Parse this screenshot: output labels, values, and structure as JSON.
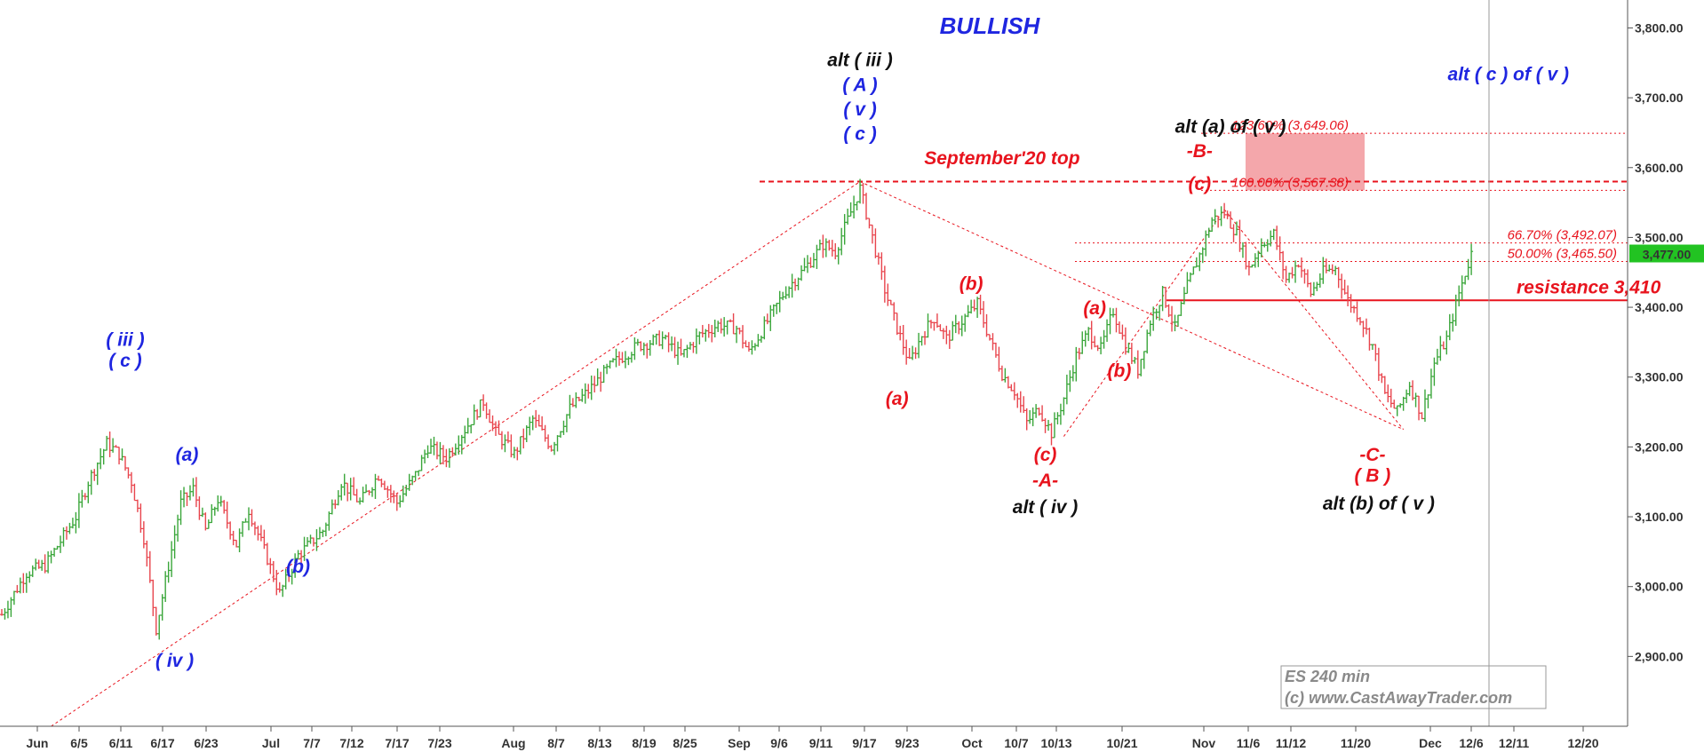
{
  "chart_data": {
    "type": "candlestick",
    "title": "BULLISH",
    "watermark": [
      "ES 240 min",
      "(c) www.CastAwayTrader.com"
    ],
    "ylim": [
      2800,
      3840
    ],
    "y_ticks": [
      "2,900.00",
      "3,000.00",
      "3,100.00",
      "3,200.00",
      "3,300.00",
      "3,400.00",
      "3,500.00",
      "3,600.00",
      "3,700.00",
      "3,800.00"
    ],
    "y_tick_values": [
      2900,
      3000,
      3100,
      3200,
      3300,
      3400,
      3500,
      3600,
      3700,
      3800
    ],
    "x_ticks": [
      "Jun",
      "6/5",
      "6/11",
      "6/17",
      "6/23",
      "Jul",
      "7/7",
      "7/12",
      "7/17",
      "7/23",
      "Aug",
      "8/7",
      "8/13",
      "8/19",
      "8/25",
      "Sep",
      "9/6",
      "9/11",
      "9/17",
      "9/23",
      "Oct",
      "10/7",
      "10/13",
      "10/21",
      "Nov",
      "11/6",
      "11/12",
      "11/20",
      "Dec",
      "12/6",
      "12/11",
      "12/20"
    ],
    "last_price": "3,477.00",
    "last_price_value": 3477,
    "price_path": [
      {
        "t": 0,
        "p": 2960
      },
      {
        "t": 4,
        "p": 3020
      },
      {
        "t": 7,
        "p": 3030
      },
      {
        "t": 12,
        "p": 3100
      },
      {
        "t": 14,
        "p": 3150
      },
      {
        "t": 17,
        "p": 3205
      },
      {
        "t": 19,
        "p": 3190
      },
      {
        "t": 21,
        "p": 3150
      },
      {
        "t": 23,
        "p": 3070
      },
      {
        "t": 25,
        "p": 2940
      },
      {
        "t": 27,
        "p": 3030
      },
      {
        "t": 29,
        "p": 3120
      },
      {
        "t": 31,
        "p": 3140
      },
      {
        "t": 33,
        "p": 3080
      },
      {
        "t": 35,
        "p": 3125
      },
      {
        "t": 38,
        "p": 3060
      },
      {
        "t": 40,
        "p": 3110
      },
      {
        "t": 43,
        "p": 3040
      },
      {
        "t": 45,
        "p": 2990
      },
      {
        "t": 48,
        "p": 3045
      },
      {
        "t": 52,
        "p": 3080
      },
      {
        "t": 55,
        "p": 3150
      },
      {
        "t": 58,
        "p": 3120
      },
      {
        "t": 61,
        "p": 3160
      },
      {
        "t": 64,
        "p": 3120
      },
      {
        "t": 67,
        "p": 3160
      },
      {
        "t": 69,
        "p": 3200
      },
      {
        "t": 72,
        "p": 3185
      },
      {
        "t": 75,
        "p": 3225
      },
      {
        "t": 78,
        "p": 3265
      },
      {
        "t": 80,
        "p": 3220
      },
      {
        "t": 83,
        "p": 3190
      },
      {
        "t": 86,
        "p": 3240
      },
      {
        "t": 89,
        "p": 3200
      },
      {
        "t": 92,
        "p": 3255
      },
      {
        "t": 95,
        "p": 3280
      },
      {
        "t": 99,
        "p": 3320
      },
      {
        "t": 103,
        "p": 3345
      },
      {
        "t": 107,
        "p": 3355
      },
      {
        "t": 110,
        "p": 3330
      },
      {
        "t": 113,
        "p": 3360
      },
      {
        "t": 116,
        "p": 3375
      },
      {
        "t": 119,
        "p": 3370
      },
      {
        "t": 121,
        "p": 3335
      },
      {
        "t": 124,
        "p": 3380
      },
      {
        "t": 127,
        "p": 3425
      },
      {
        "t": 130,
        "p": 3455
      },
      {
        "t": 133,
        "p": 3490
      },
      {
        "t": 135,
        "p": 3480
      },
      {
        "t": 137,
        "p": 3525
      },
      {
        "t": 139,
        "p": 3570
      },
      {
        "t": 141,
        "p": 3500
      },
      {
        "t": 143,
        "p": 3425
      },
      {
        "t": 145,
        "p": 3370
      },
      {
        "t": 147,
        "p": 3320
      },
      {
        "t": 149,
        "p": 3360
      },
      {
        "t": 151,
        "p": 3385
      },
      {
        "t": 153,
        "p": 3355
      },
      {
        "t": 156,
        "p": 3385
      },
      {
        "t": 158,
        "p": 3405
      },
      {
        "t": 160,
        "p": 3355
      },
      {
        "t": 162,
        "p": 3305
      },
      {
        "t": 164,
        "p": 3280
      },
      {
        "t": 166,
        "p": 3235
      },
      {
        "t": 168,
        "p": 3255
      },
      {
        "t": 170,
        "p": 3220
      },
      {
        "t": 172,
        "p": 3270
      },
      {
        "t": 174,
        "p": 3330
      },
      {
        "t": 176,
        "p": 3365
      },
      {
        "t": 178,
        "p": 3340
      },
      {
        "t": 180,
        "p": 3395
      },
      {
        "t": 182,
        "p": 3345
      },
      {
        "t": 184,
        "p": 3310
      },
      {
        "t": 186,
        "p": 3380
      },
      {
        "t": 188,
        "p": 3420
      },
      {
        "t": 190,
        "p": 3370
      },
      {
        "t": 192,
        "p": 3430
      },
      {
        "t": 194,
        "p": 3475
      },
      {
        "t": 196,
        "p": 3525
      },
      {
        "t": 198,
        "p": 3535
      },
      {
        "t": 200,
        "p": 3505
      },
      {
        "t": 202,
        "p": 3455
      },
      {
        "t": 204,
        "p": 3490
      },
      {
        "t": 206,
        "p": 3505
      },
      {
        "t": 208,
        "p": 3440
      },
      {
        "t": 210,
        "p": 3465
      },
      {
        "t": 212,
        "p": 3420
      },
      {
        "t": 214,
        "p": 3450
      },
      {
        "t": 216,
        "p": 3455
      },
      {
        "t": 218,
        "p": 3410
      },
      {
        "t": 220,
        "p": 3385
      },
      {
        "t": 222,
        "p": 3345
      },
      {
        "t": 224,
        "p": 3275
      },
      {
        "t": 226,
        "p": 3250
      },
      {
        "t": 228,
        "p": 3290
      },
      {
        "t": 230,
        "p": 3245
      },
      {
        "t": 232,
        "p": 3320
      },
      {
        "t": 234,
        "p": 3355
      },
      {
        "t": 236,
        "p": 3420
      },
      {
        "t": 238,
        "p": 3477
      }
    ],
    "horizontal_levels": [
      {
        "label": "September'20 top",
        "value": 3580,
        "style": "dashed"
      },
      {
        "label": "resistance 3,410",
        "value": 3410,
        "style": "solid"
      },
      {
        "label": "123.60% (3,649.06)",
        "value": 3649.06,
        "style": "dotted"
      },
      {
        "label": "100.00% (3,567.38)",
        "value": 3567.38,
        "style": "dotted"
      },
      {
        "label": "66.70% (3,492.07)",
        "value": 3492.07,
        "style": "dotted"
      },
      {
        "label": "50.00% (3,465.50)",
        "value": 3465.5,
        "style": "dotted"
      }
    ],
    "target_zone": [
      3567.38,
      3649.06
    ],
    "trendlines": [
      {
        "from": {
          "t": 8,
          "p": 2800
        },
        "to": {
          "t": 139,
          "p": 3580
        }
      },
      {
        "from": {
          "t": 139,
          "p": 3580
        },
        "to": {
          "t": 227,
          "p": 3225
        }
      },
      {
        "from": {
          "t": 172,
          "p": 3215
        },
        "to": {
          "t": 198,
          "p": 3540
        }
      },
      {
        "from": {
          "t": 198,
          "p": 3540
        },
        "to": {
          "t": 227,
          "p": 3225
        }
      }
    ],
    "annotations": [
      {
        "text": "( iii )",
        "color": "blue",
        "t": 20,
        "p": 3345
      },
      {
        "text": "( c )",
        "color": "blue",
        "t": 20,
        "p": 3315
      },
      {
        "text": "(a)",
        "color": "blue",
        "t": 30,
        "p": 3180
      },
      {
        "text": "( iv )",
        "color": "blue",
        "t": 28,
        "p": 2885
      },
      {
        "text": "(b)",
        "color": "blue",
        "t": 48,
        "p": 3020
      },
      {
        "text": "alt ( iii )",
        "color": "black",
        "t": 139,
        "p": 3745
      },
      {
        "text": "( A )",
        "color": "blue",
        "t": 139,
        "p": 3710
      },
      {
        "text": "( v )",
        "color": "blue",
        "t": 139,
        "p": 3675
      },
      {
        "text": "( c )",
        "color": "blue",
        "t": 139,
        "p": 3640
      },
      {
        "text": "September'20 top",
        "color": "red",
        "t": 162,
        "p": 3605
      },
      {
        "text": "(b)",
        "color": "red",
        "t": 157,
        "p": 3425
      },
      {
        "text": "(a)",
        "color": "red",
        "t": 145,
        "p": 3260
      },
      {
        "text": "(c)",
        "color": "red",
        "t": 169,
        "p": 3180
      },
      {
        "text": "-A-",
        "color": "red",
        "t": 169,
        "p": 3143
      },
      {
        "text": "alt ( iv )",
        "color": "black",
        "t": 169,
        "p": 3105
      },
      {
        "text": "(a)",
        "color": "red",
        "t": 177,
        "p": 3390
      },
      {
        "text": "(b)",
        "color": "red",
        "t": 181,
        "p": 3300
      },
      {
        "text": "alt (a) of ( v )",
        "color": "black",
        "t": 199,
        "p": 3650
      },
      {
        "text": "-B-",
        "color": "red",
        "t": 194,
        "p": 3615
      },
      {
        "text": "(c)",
        "color": "red",
        "t": 194,
        "p": 3568
      },
      {
        "text": "-C-",
        "color": "red",
        "t": 222,
        "p": 3180
      },
      {
        "text": "( B )",
        "color": "red",
        "t": 222,
        "p": 3150
      },
      {
        "text": "alt (b) of ( v )",
        "color": "black",
        "t": 223,
        "p": 3110
      },
      {
        "text": "alt ( c ) of ( v )",
        "color": "blue",
        "t": 244,
        "p": 3725
      },
      {
        "text": "resistance 3,410",
        "color": "red",
        "t": 257,
        "p": 3420
      }
    ],
    "legend": "none",
    "grid": false
  }
}
